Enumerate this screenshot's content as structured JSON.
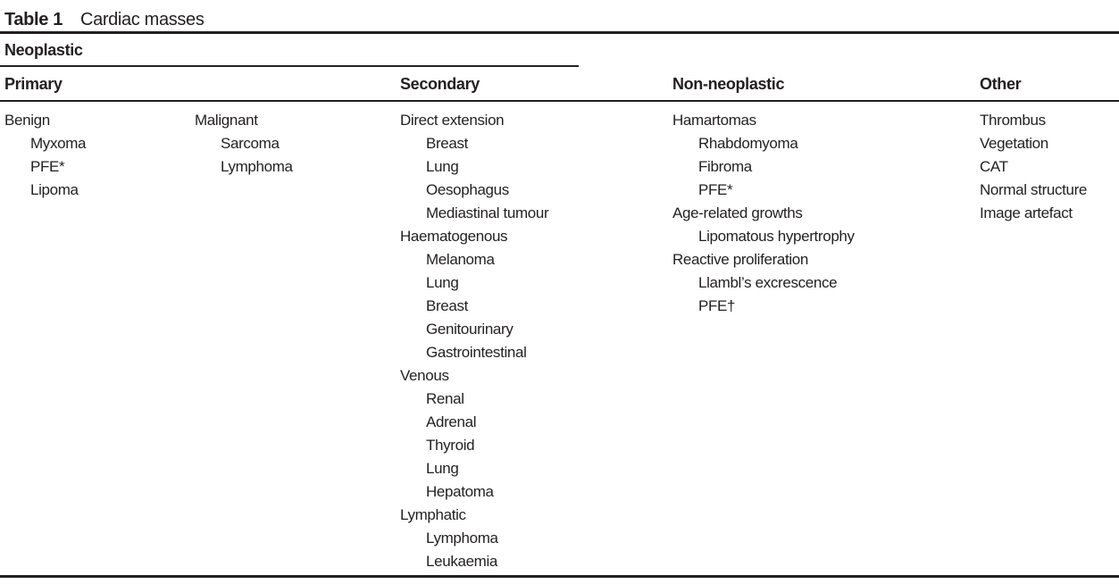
{
  "table": {
    "label": "Table 1",
    "caption": "Cardiac masses",
    "supercolumn": "Neoplastic",
    "headers": [
      {
        "label": "Primary"
      },
      {
        "label": "Secondary"
      },
      {
        "label": "Non-neoplastic"
      },
      {
        "label": "Other"
      }
    ],
    "columns": [
      {
        "name": "primary-benign",
        "items": [
          {
            "text": "Benign",
            "level": 0
          },
          {
            "text": "Myxoma",
            "level": 1
          },
          {
            "text": "PFE*",
            "level": 1
          },
          {
            "text": "Lipoma",
            "level": 1
          }
        ]
      },
      {
        "name": "primary-malignant",
        "items": [
          {
            "text": "Malignant",
            "level": 0
          },
          {
            "text": "Sarcoma",
            "level": 1
          },
          {
            "text": "Lymphoma",
            "level": 1
          }
        ]
      },
      {
        "name": "secondary",
        "items": [
          {
            "text": "Direct extension",
            "level": 0
          },
          {
            "text": "Breast",
            "level": 1
          },
          {
            "text": "Lung",
            "level": 1
          },
          {
            "text": "Oesophagus",
            "level": 1
          },
          {
            "text": "Mediastinal tumour",
            "level": 1
          },
          {
            "text": "Haematogenous",
            "level": 0
          },
          {
            "text": "Melanoma",
            "level": 1
          },
          {
            "text": "Lung",
            "level": 1
          },
          {
            "text": "Breast",
            "level": 1
          },
          {
            "text": "Genitourinary",
            "level": 1
          },
          {
            "text": "Gastrointestinal",
            "level": 1
          },
          {
            "text": "Venous",
            "level": 0
          },
          {
            "text": "Renal",
            "level": 1
          },
          {
            "text": "Adrenal",
            "level": 1
          },
          {
            "text": "Thyroid",
            "level": 1
          },
          {
            "text": "Lung",
            "level": 1
          },
          {
            "text": "Hepatoma",
            "level": 1
          },
          {
            "text": "Lymphatic",
            "level": 0
          },
          {
            "text": "Lymphoma",
            "level": 1
          },
          {
            "text": "Leukaemia",
            "level": 1
          }
        ]
      },
      {
        "name": "non-neoplastic",
        "items": [
          {
            "text": "Hamartomas",
            "level": 0
          },
          {
            "text": "Rhabdomyoma",
            "level": 1
          },
          {
            "text": "Fibroma",
            "level": 1
          },
          {
            "text": "PFE*",
            "level": 1
          },
          {
            "text": "Age-related growths",
            "level": 0
          },
          {
            "text": "Lipomatous hypertrophy",
            "level": 1
          },
          {
            "text": "Reactive proliferation",
            "level": 0
          },
          {
            "text": "Llambl’s excrescence",
            "level": 1
          },
          {
            "text": "PFE†",
            "level": 1
          }
        ]
      },
      {
        "name": "other",
        "items": [
          {
            "text": "Thrombus",
            "level": 0
          },
          {
            "text": "Vegetation",
            "level": 0
          },
          {
            "text": "CAT",
            "level": 0
          },
          {
            "text": "Normal structure",
            "level": 0
          },
          {
            "text": "Image artefact",
            "level": 0
          }
        ]
      }
    ],
    "colors": {
      "text": "#231f20",
      "rule": "#231f20",
      "background": "#ffffff"
    }
  }
}
